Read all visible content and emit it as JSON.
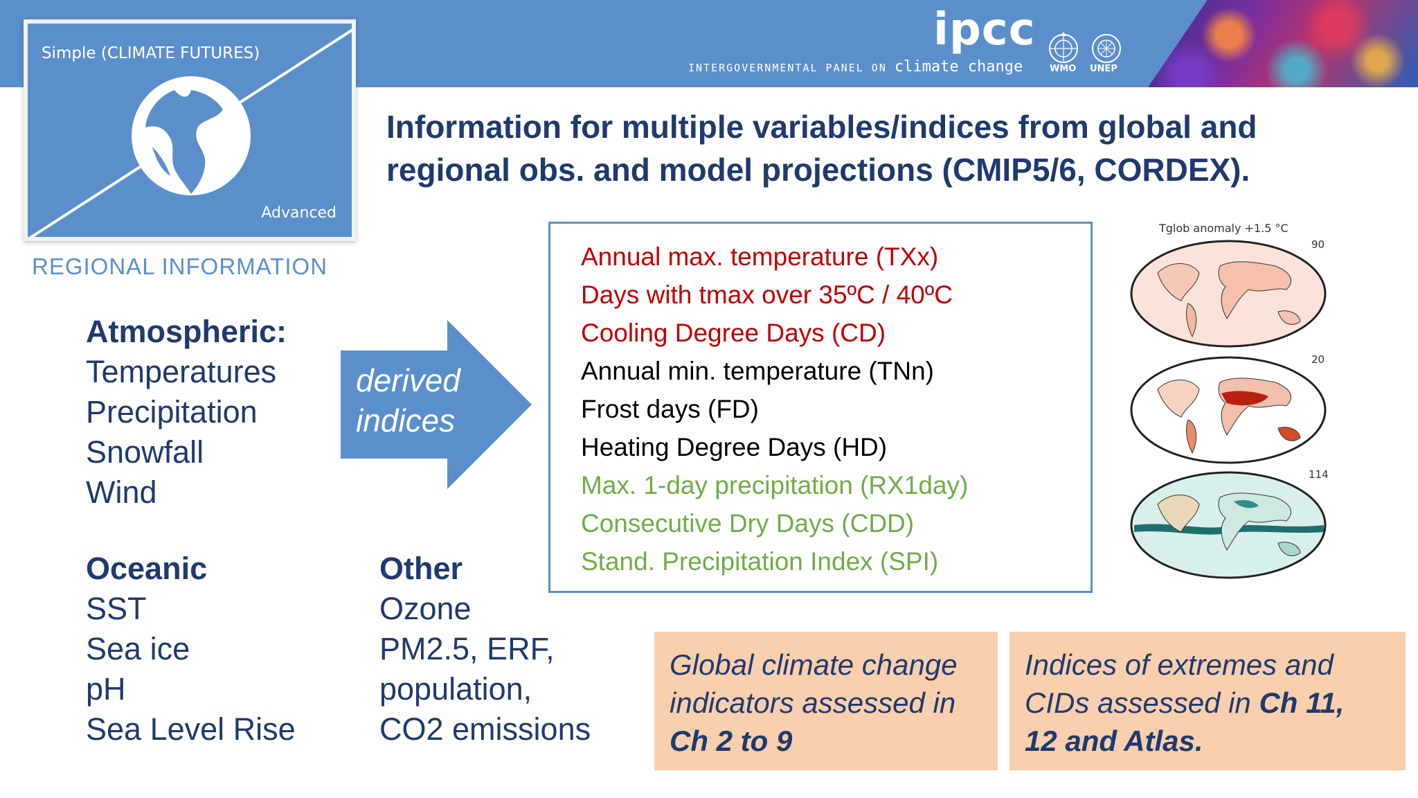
{
  "header": {
    "logo_text": "ipcc",
    "subtitle_small": "INTERGOVERNMENTAL PANEL ON",
    "subtitle_big": "climate change",
    "orgs": [
      "WMO",
      "UNEP"
    ]
  },
  "regional_card": {
    "top_label": "Simple (CLIMATE FUTURES)",
    "bottom_label": "Advanced",
    "caption": "REGIONAL INFORMATION"
  },
  "headline": {
    "line1": "Information for multiple variables/indices from global and",
    "line2": "regional obs. and model projections (CMIP5/6, CORDEX)."
  },
  "atmospheric": {
    "heading": "Atmospheric:",
    "items": [
      "Temperatures",
      "Precipitation",
      "Snowfall",
      "Wind"
    ]
  },
  "oceanic": {
    "heading": "Oceanic",
    "items": [
      "SST",
      "Sea ice",
      "pH",
      "Sea Level Rise"
    ]
  },
  "other": {
    "heading": "Other",
    "items": [
      "Ozone",
      "PM2.5, ERF,",
      "population,",
      "CO2 emissions"
    ]
  },
  "arrow": {
    "line1": "derived",
    "line2": "indices"
  },
  "indices": [
    {
      "text": "Annual max. temperature (TXx)",
      "color": "#c00000"
    },
    {
      "text": "Days with tmax over 35ºC / 40ºC",
      "color": "#c00000"
    },
    {
      "text": "Cooling Degree Days (CD)",
      "color": "#c00000"
    },
    {
      "text": "Annual min. temperature (TNn)",
      "color": "#000000"
    },
    {
      "text": "Frost days (FD)",
      "color": "#000000"
    },
    {
      "text": "Heating Degree Days (HD)",
      "color": "#000000"
    },
    {
      "text": "Max. 1-day precipitation (RX1day)",
      "color": "#70ad47"
    },
    {
      "text": "Consecutive Dry Days (CDD)",
      "color": "#70ad47"
    },
    {
      "text": "Stand. Precipitation Index (SPI)",
      "color": "#70ad47"
    }
  ],
  "maps": {
    "title": "Tglob anomaly +1.5 °C",
    "panels": [
      {
        "scale": "90",
        "theme": "light-red"
      },
      {
        "scale": "20",
        "theme": "dark-red"
      },
      {
        "scale": "114",
        "theme": "teal"
      }
    ]
  },
  "callouts": {
    "left": {
      "line1": "Global climate change",
      "line2": "indicators assessed in",
      "line3": "Ch 2 to 9"
    },
    "right": {
      "line1": "Indices of extremes and",
      "line2_pre": "CIDs assessed in ",
      "line2_bold": "Ch 11,",
      "line3": "12 and Atlas."
    }
  },
  "colors": {
    "brand_blue": "#5b8fcb",
    "navy_text": "#1f3a6d",
    "callout_bg": "#f9cfae"
  }
}
